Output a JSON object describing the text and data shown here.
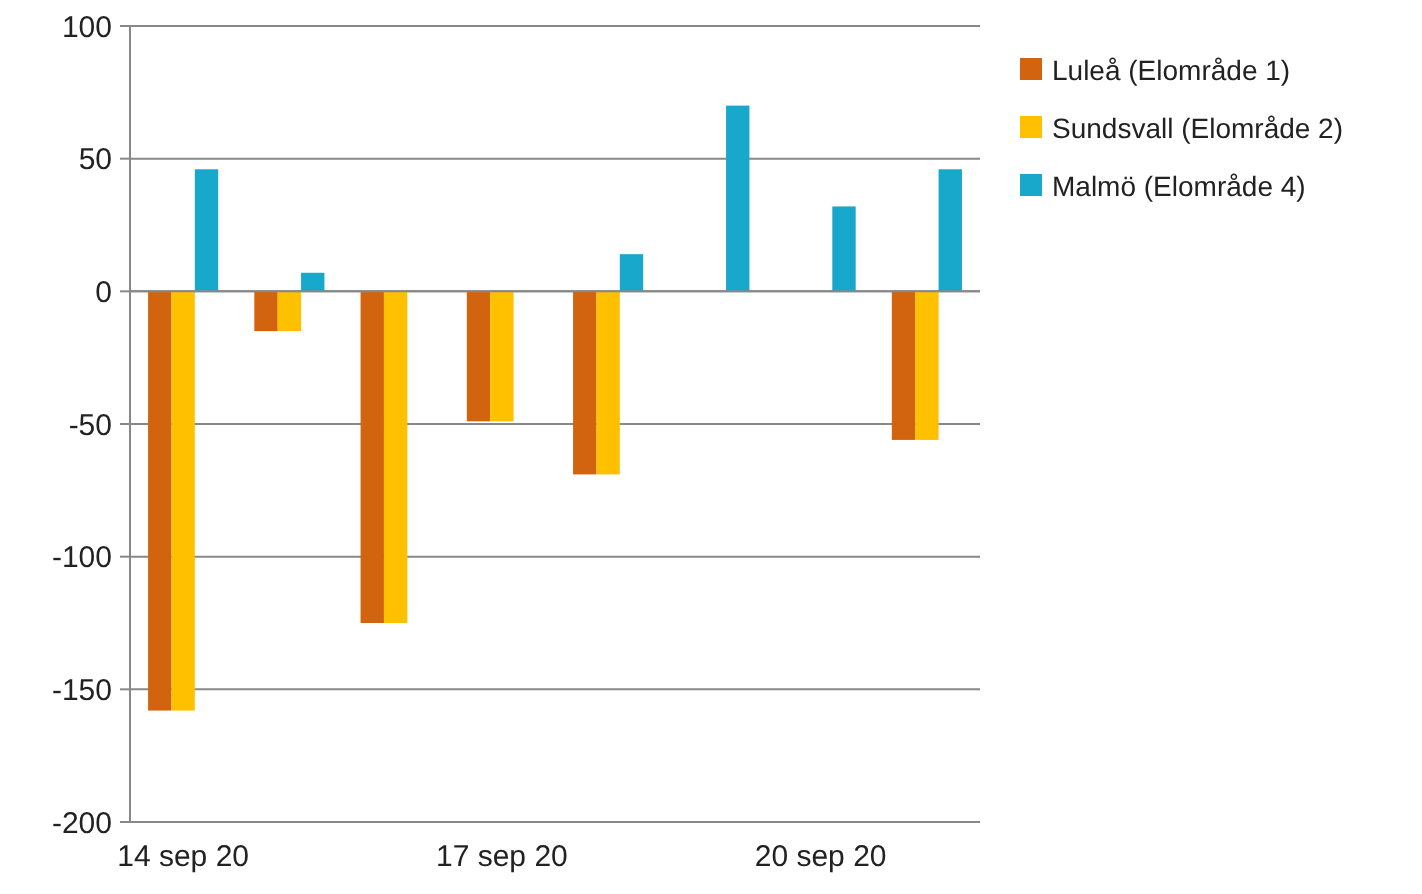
{
  "chart_data": {
    "type": "bar",
    "categories": [
      "14 sep 20",
      null,
      null,
      "17 sep 20",
      null,
      null,
      "20 sep 20",
      null
    ],
    "series": [
      {
        "name": "Luleå (Elområde 1)",
        "color": "#d2640f",
        "values": [
          -158,
          -15,
          -125,
          -49,
          -69,
          null,
          null,
          -56
        ]
      },
      {
        "name": "Sundsvall (Elområde 2)",
        "color": "#ffc000",
        "values": [
          -158,
          -15,
          -125,
          -49,
          -69,
          null,
          null,
          -56
        ]
      },
      {
        "name": "Malmö (Elområde 4)",
        "color": "#18a8cc",
        "values": [
          46,
          7,
          null,
          null,
          14,
          70,
          32,
          46
        ]
      }
    ],
    "ylim": [
      -200,
      100
    ],
    "yticks": [
      -200,
      -150,
      -100,
      -50,
      0,
      50,
      100
    ],
    "grid": "y",
    "legend": "right"
  }
}
